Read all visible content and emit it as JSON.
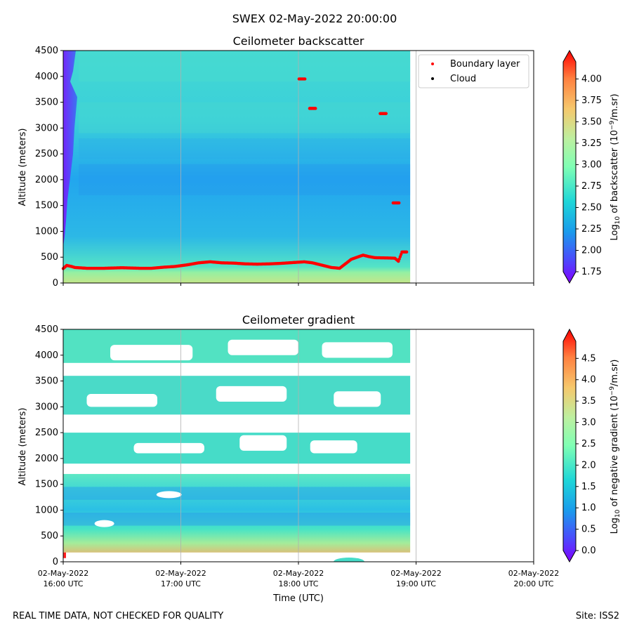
{
  "figure_title": "SWEX 02-May-2022 20:00:00",
  "footer": {
    "left": "REAL TIME DATA, NOT CHECKED FOR QUALITY",
    "right": "Site: ISS2"
  },
  "chart_data": [
    {
      "type": "heatmap",
      "title": "Ceilometer backscatter",
      "ylabel": "Altitude (meters)",
      "xlabel": "",
      "ylim": [
        0,
        4500
      ],
      "y_ticks": [
        "0",
        "500",
        "1000",
        "1500",
        "2000",
        "2500",
        "3000",
        "3500",
        "4000",
        "4500"
      ],
      "x_range_hours": [
        16,
        20
      ],
      "data_end_hour": 18.95,
      "grid": "vertical lines at each hour",
      "legend": {
        "placement": "top-right",
        "entries": [
          {
            "label": "Boundary layer",
            "color": "#ff0000"
          },
          {
            "label": "Cloud",
            "color": "#000000"
          }
        ]
      },
      "colorbar": {
        "label": "Log10 of backscatter (10^-9/m.sr)",
        "label_prefix": "Log",
        "label_sub": "10",
        "label_mid": " of backscatter (10",
        "label_sup": "−9",
        "label_suffix": "/m.sr)",
        "range": [
          1.75,
          4.2
        ],
        "ticks": [
          "1.75",
          "2.00",
          "2.25",
          "2.50",
          "2.75",
          "3.00",
          "3.25",
          "3.50",
          "3.75",
          "4.00"
        ]
      },
      "boundary_layer_points": [
        {
          "t": 16.0,
          "alt": 280
        },
        {
          "t": 16.03,
          "alt": 340
        },
        {
          "t": 16.07,
          "alt": 320
        },
        {
          "t": 16.1,
          "alt": 300
        },
        {
          "t": 16.2,
          "alt": 285
        },
        {
          "t": 16.35,
          "alt": 285
        },
        {
          "t": 16.5,
          "alt": 295
        },
        {
          "t": 16.65,
          "alt": 285
        },
        {
          "t": 16.75,
          "alt": 285
        },
        {
          "t": 16.85,
          "alt": 305
        },
        {
          "t": 16.95,
          "alt": 320
        },
        {
          "t": 17.05,
          "alt": 350
        },
        {
          "t": 17.15,
          "alt": 390
        },
        {
          "t": 17.25,
          "alt": 410
        },
        {
          "t": 17.35,
          "alt": 390
        },
        {
          "t": 17.45,
          "alt": 385
        },
        {
          "t": 17.55,
          "alt": 370
        },
        {
          "t": 17.65,
          "alt": 365
        },
        {
          "t": 17.75,
          "alt": 370
        },
        {
          "t": 17.85,
          "alt": 380
        },
        {
          "t": 17.95,
          "alt": 395
        },
        {
          "t": 18.05,
          "alt": 410
        },
        {
          "t": 18.12,
          "alt": 390
        },
        {
          "t": 18.2,
          "alt": 345
        },
        {
          "t": 18.28,
          "alt": 300
        },
        {
          "t": 18.35,
          "alt": 285
        },
        {
          "t": 18.45,
          "alt": 460
        },
        {
          "t": 18.5,
          "alt": 500
        },
        {
          "t": 18.55,
          "alt": 540
        },
        {
          "t": 18.6,
          "alt": 510
        },
        {
          "t": 18.65,
          "alt": 490
        },
        {
          "t": 18.75,
          "alt": 485
        },
        {
          "t": 18.82,
          "alt": 480
        },
        {
          "t": 18.85,
          "alt": 420
        },
        {
          "t": 18.88,
          "alt": 600
        },
        {
          "t": 18.92,
          "alt": 600
        }
      ],
      "isolated_points": [
        {
          "t": 18.03,
          "alt": 3950
        },
        {
          "t": 18.12,
          "alt": 3380
        },
        {
          "t": 18.72,
          "alt": 3280
        },
        {
          "t": 18.83,
          "alt": 1550
        }
      ]
    },
    {
      "type": "heatmap",
      "title": "Ceilometer gradient",
      "ylabel": "Altitude (meters)",
      "xlabel": "Time (UTC)",
      "ylim": [
        0,
        4500
      ],
      "y_ticks": [
        "0",
        "500",
        "1000",
        "1500",
        "2000",
        "2500",
        "3000",
        "3500",
        "4000",
        "4500"
      ],
      "x_ticks": [
        {
          "date": "02-May-2022",
          "time": "16:00 UTC"
        },
        {
          "date": "02-May-2022",
          "time": "17:00 UTC"
        },
        {
          "date": "02-May-2022",
          "time": "18:00 UTC"
        },
        {
          "date": "02-May-2022",
          "time": "19:00 UTC"
        },
        {
          "date": "02-May-2022",
          "time": "20:00 UTC"
        }
      ],
      "x_range_hours": [
        16,
        20
      ],
      "data_end_hour": 18.95,
      "colorbar": {
        "label": "Log10 of negative gradient (10^-9/m.sr)",
        "label_prefix": "Log",
        "label_sub": "10",
        "label_mid": " of negative gradient (10",
        "label_sup": "−9",
        "label_suffix": "/m.sr)",
        "range": [
          0.0,
          4.9
        ],
        "ticks": [
          "0.0",
          "0.5",
          "1.0",
          "1.5",
          "2.0",
          "2.5",
          "3.0",
          "3.5",
          "4.0",
          "4.5"
        ]
      },
      "layers": [
        {
          "t0": 16.0,
          "t1": 18.95,
          "alt0": 180,
          "alt1": 1700,
          "level": 1.9
        },
        {
          "t0": 16.0,
          "t1": 18.95,
          "alt0": 1900,
          "alt1": 2500,
          "level": 1.8
        },
        {
          "t0": 16.0,
          "t1": 18.95,
          "alt0": 2850,
          "alt1": 3600,
          "level": 1.8
        },
        {
          "t0": 16.0,
          "t1": 18.95,
          "alt0": 3850,
          "alt1": 4500,
          "level": 1.9
        }
      ]
    }
  ]
}
